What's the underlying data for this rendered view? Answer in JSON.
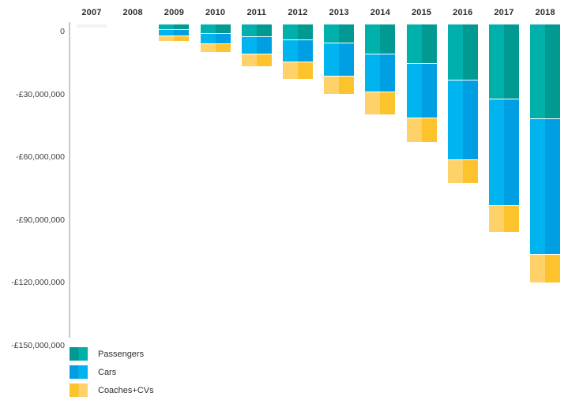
{
  "chart_data": {
    "type": "bar",
    "variant": "stacked-column-negative",
    "title": "",
    "xlabel": "",
    "ylabel": "",
    "categories": [
      "2007",
      "2008",
      "2009",
      "2010",
      "2011",
      "2012",
      "2013",
      "2014",
      "2015",
      "2016",
      "2017",
      "2018"
    ],
    "series": [
      {
        "name": "Passengers",
        "color_light": "#00b1ab",
        "color_dark": "#009a93",
        "values": [
          0,
          0,
          -2900000,
          -4700000,
          -6300000,
          -7800000,
          -9400000,
          -14500000,
          -19200000,
          -27100000,
          -36000000,
          -45500000
        ]
      },
      {
        "name": "Cars",
        "color_light": "#00b5ef",
        "color_dark": "#009fe3",
        "values": [
          0,
          0,
          -2800000,
          -4900000,
          -8200000,
          -10400000,
          -15600000,
          -18200000,
          -26000000,
          -37900000,
          -50900000,
          -64700000
        ]
      },
      {
        "name": "Coaches+CVs",
        "color_light": "#fed269",
        "color_dark": "#fdc32d",
        "values": [
          0,
          0,
          -2300000,
          -3700000,
          -5500000,
          -7900000,
          -8500000,
          -10400000,
          -11100000,
          -11100000,
          -12400000,
          -13300000
        ]
      }
    ],
    "y_axis": {
      "tick_labels": [
        "0",
        "-£30,000,000",
        "-£60,000,000",
        "-£90,000,000",
        "-£120,000,000",
        "-£150,000,000"
      ],
      "tick_values": [
        0,
        -30000000,
        -60000000,
        -90000000,
        -120000000,
        -150000000
      ],
      "range": [
        -150000000,
        0
      ]
    },
    "x_axis_position": "top",
    "grid": false,
    "legend": {
      "position": "bottom-left",
      "entries": [
        "Passengers",
        "Cars",
        "Coaches+CVs"
      ]
    },
    "placeholder_stub": {
      "category": "2007",
      "color": "#f2f2f2",
      "value": -1600000
    }
  }
}
